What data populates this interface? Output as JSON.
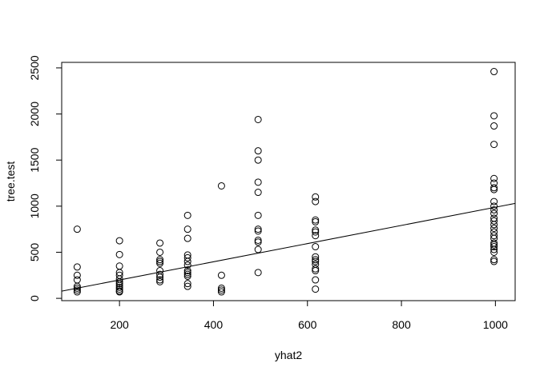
{
  "chart_data": {
    "type": "scatter",
    "title": "",
    "xlabel": "yhat2",
    "ylabel": "tree.test",
    "xlim": [
      77,
      1042
    ],
    "ylim": [
      -25,
      2560
    ],
    "x_ticks": [
      200,
      400,
      600,
      800,
      1000
    ],
    "y_ticks": [
      0,
      500,
      1000,
      1500,
      2000,
      2500
    ],
    "x_tick_labels": [
      "200",
      "400",
      "600",
      "800",
      "1000"
    ],
    "y_tick_labels": [
      "0",
      "500",
      "1000",
      "1500",
      "2000",
      "2500"
    ],
    "grid": false,
    "marker": "open-circle",
    "regression_line": {
      "x": [
        77,
        1042
      ],
      "y": [
        78,
        1030
      ]
    },
    "points": [
      [
        110,
        750
      ],
      [
        110,
        340
      ],
      [
        110,
        250
      ],
      [
        110,
        200
      ],
      [
        110,
        130
      ],
      [
        110,
        110
      ],
      [
        110,
        90
      ],
      [
        110,
        70
      ],
      [
        200,
        625
      ],
      [
        200,
        475
      ],
      [
        200,
        350
      ],
      [
        200,
        280
      ],
      [
        200,
        250
      ],
      [
        200,
        210
      ],
      [
        200,
        180
      ],
      [
        200,
        160
      ],
      [
        200,
        140
      ],
      [
        200,
        120
      ],
      [
        200,
        100
      ],
      [
        200,
        80
      ],
      [
        200,
        70
      ],
      [
        286,
        600
      ],
      [
        286,
        500
      ],
      [
        286,
        420
      ],
      [
        286,
        400
      ],
      [
        286,
        380
      ],
      [
        286,
        300
      ],
      [
        286,
        260
      ],
      [
        286,
        230
      ],
      [
        286,
        200
      ],
      [
        286,
        180
      ],
      [
        345,
        900
      ],
      [
        345,
        750
      ],
      [
        345,
        650
      ],
      [
        345,
        470
      ],
      [
        345,
        440
      ],
      [
        345,
        400
      ],
      [
        345,
        360
      ],
      [
        345,
        300
      ],
      [
        345,
        280
      ],
      [
        345,
        260
      ],
      [
        345,
        240
      ],
      [
        345,
        160
      ],
      [
        345,
        130
      ],
      [
        417,
        1220
      ],
      [
        417,
        250
      ],
      [
        417,
        110
      ],
      [
        417,
        90
      ],
      [
        417,
        70
      ],
      [
        495,
        1940
      ],
      [
        495,
        1600
      ],
      [
        495,
        1500
      ],
      [
        495,
        1260
      ],
      [
        495,
        1150
      ],
      [
        495,
        900
      ],
      [
        495,
        750
      ],
      [
        495,
        730
      ],
      [
        495,
        630
      ],
      [
        495,
        610
      ],
      [
        495,
        530
      ],
      [
        495,
        280
      ],
      [
        617,
        1100
      ],
      [
        617,
        1050
      ],
      [
        617,
        850
      ],
      [
        617,
        830
      ],
      [
        617,
        740
      ],
      [
        617,
        720
      ],
      [
        617,
        680
      ],
      [
        617,
        560
      ],
      [
        617,
        450
      ],
      [
        617,
        420
      ],
      [
        617,
        400
      ],
      [
        617,
        370
      ],
      [
        617,
        320
      ],
      [
        617,
        300
      ],
      [
        617,
        200
      ],
      [
        617,
        100
      ],
      [
        997,
        2460
      ],
      [
        997,
        1980
      ],
      [
        997,
        1870
      ],
      [
        997,
        1670
      ],
      [
        997,
        1300
      ],
      [
        997,
        1250
      ],
      [
        997,
        1200
      ],
      [
        997,
        1180
      ],
      [
        997,
        1050
      ],
      [
        997,
        1000
      ],
      [
        997,
        960
      ],
      [
        997,
        920
      ],
      [
        997,
        870
      ],
      [
        997,
        840
      ],
      [
        997,
        800
      ],
      [
        997,
        760
      ],
      [
        997,
        720
      ],
      [
        997,
        680
      ],
      [
        997,
        650
      ],
      [
        997,
        600
      ],
      [
        997,
        580
      ],
      [
        997,
        560
      ],
      [
        997,
        530
      ],
      [
        997,
        500
      ],
      [
        997,
        420
      ],
      [
        997,
        400
      ]
    ]
  }
}
